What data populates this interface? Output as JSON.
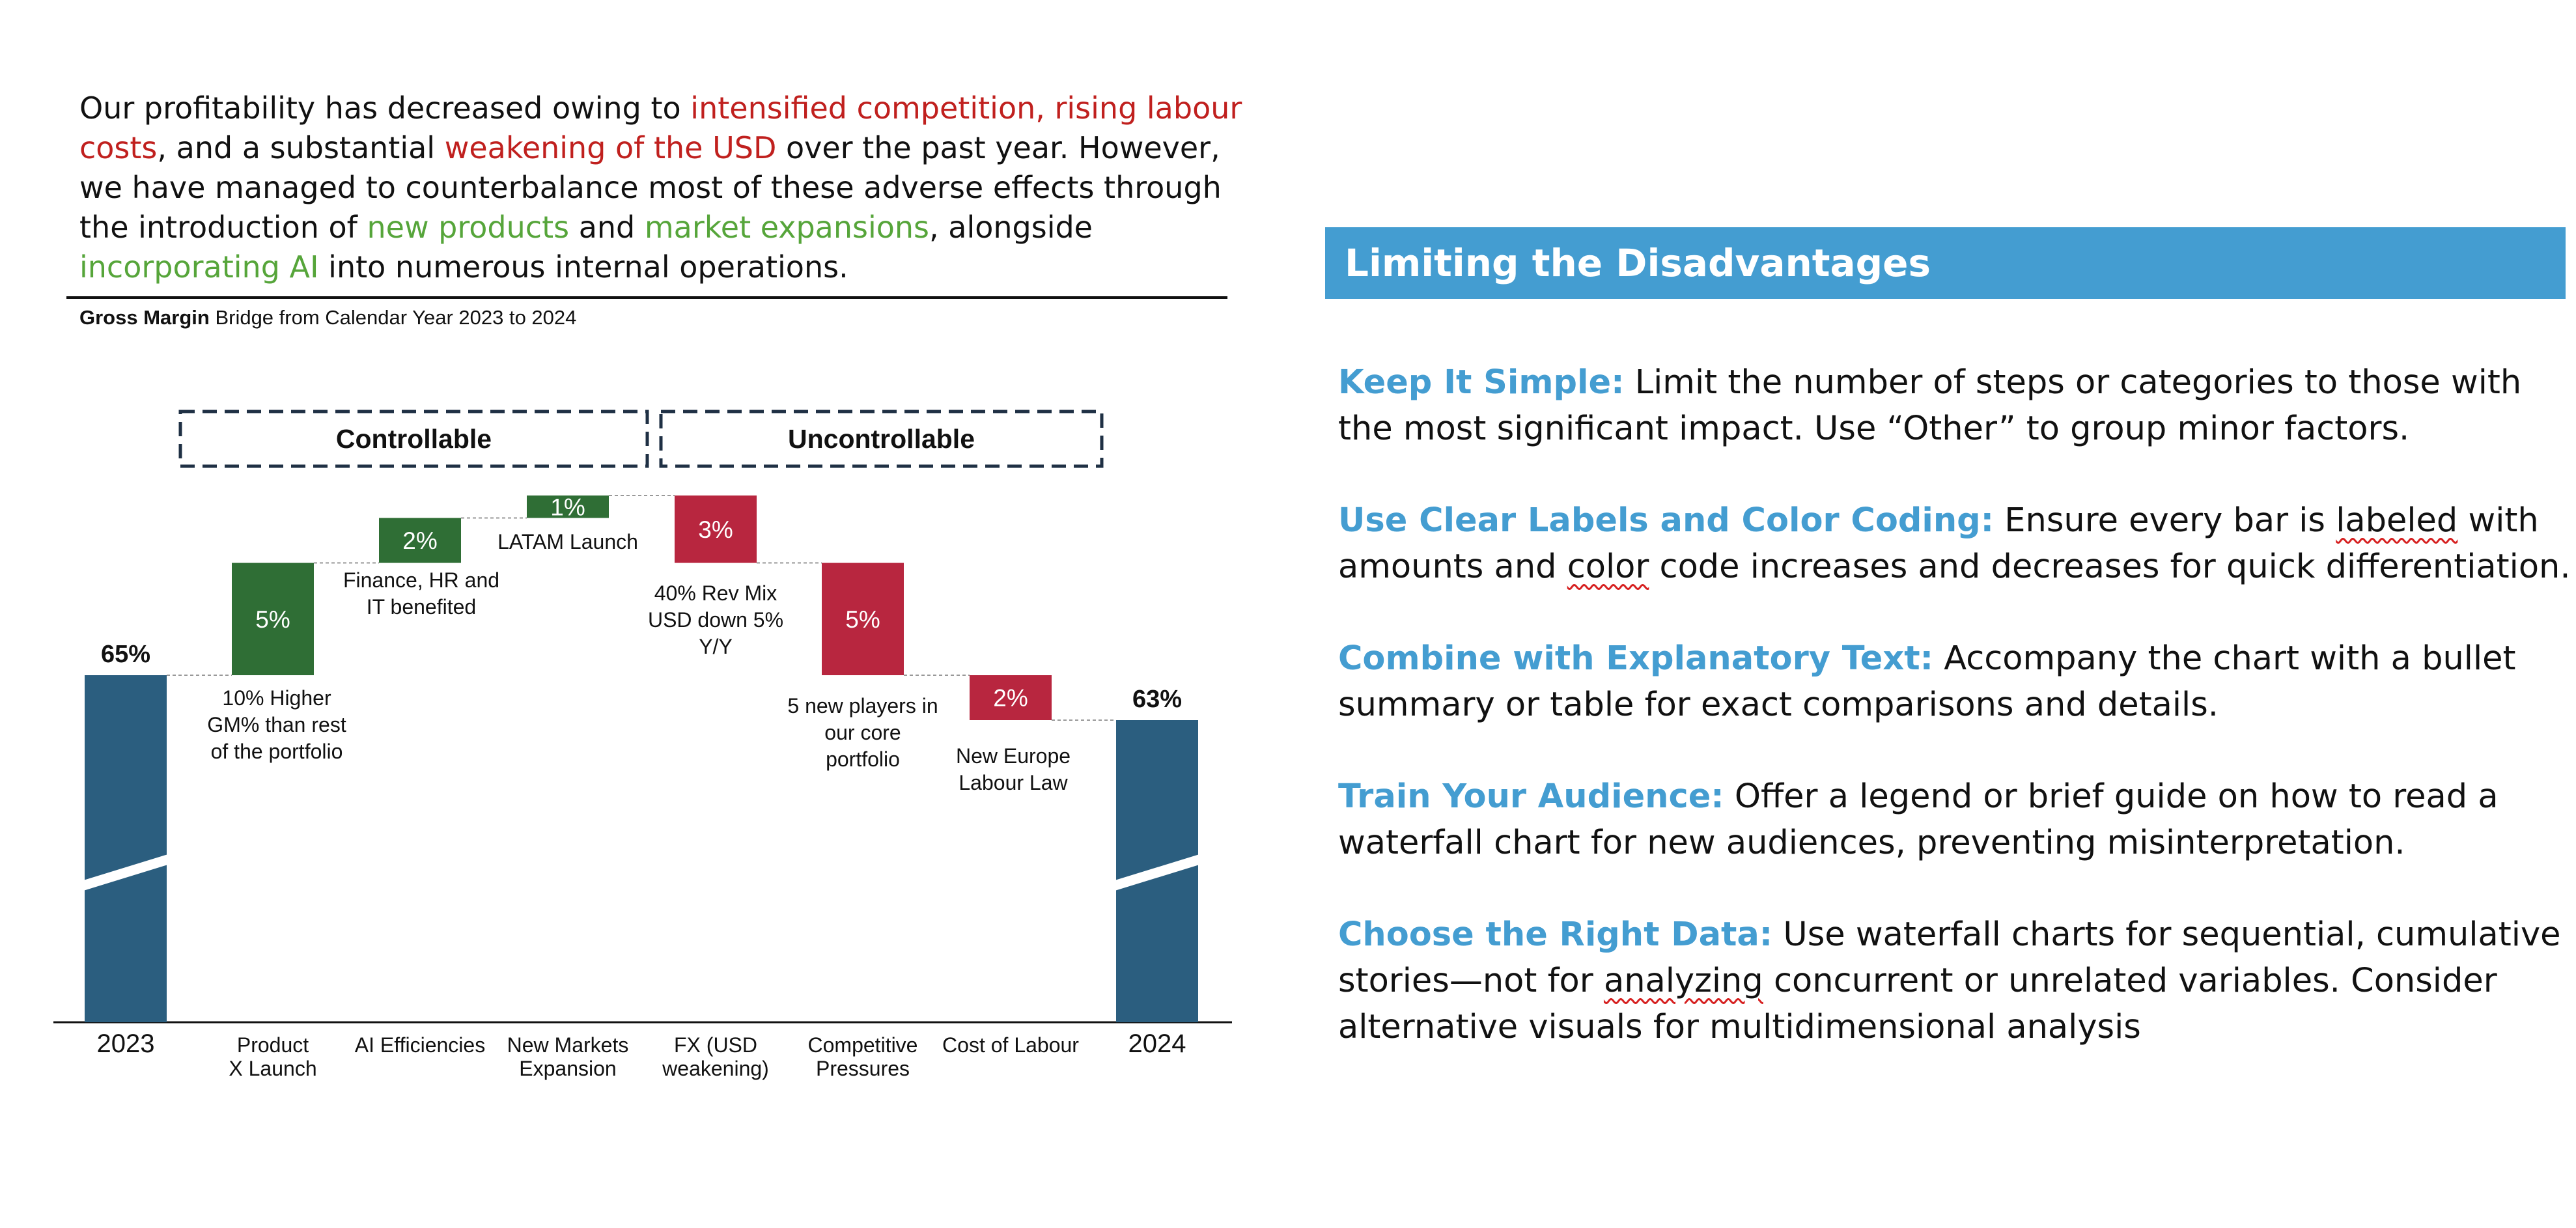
{
  "intro": {
    "p1": "Our profitability has decreased owing to ",
    "neg1": "intensified competition, rising labour costs",
    "p2": ", and a substantial ",
    "neg2": "weakening of the USD",
    "p3": " over the past year. However, we have managed to counterbalance most of these adverse effects through the introduction of ",
    "pos1": "new products",
    "p4": " and ",
    "pos2": "market expansions",
    "p5": ", alongside ",
    "pos3": "incorporating AI",
    "p6": " into numerous internal operations."
  },
  "subtitle": {
    "bold": "Gross Margin",
    "rest": " Bridge from Calendar Year 2023 to 2024"
  },
  "chart_data": {
    "type": "bar",
    "subtype": "waterfall",
    "title": "Gross Margin Bridge from Calendar Year 2023 to 2024",
    "unit": "%",
    "axis_break": true,
    "groups": [
      {
        "label": "Controllable",
        "steps": [
          1,
          2,
          3
        ]
      },
      {
        "label": "Uncontrollable",
        "steps": [
          4,
          5,
          6
        ]
      }
    ],
    "steps": [
      {
        "category": [
          "2023"
        ],
        "kind": "total",
        "value": 65,
        "label": "65%",
        "note": []
      },
      {
        "category": [
          "Product",
          "X Launch"
        ],
        "kind": "increase",
        "value": 5,
        "label": "5%",
        "note": [
          "10% Higher",
          "GM% than rest",
          "of the portfolio"
        ]
      },
      {
        "category": [
          "AI Efficiencies"
        ],
        "kind": "increase",
        "value": 2,
        "label": "2%",
        "note": [
          "Finance, HR and",
          "IT benefited"
        ]
      },
      {
        "category": [
          "New Markets",
          "Expansion"
        ],
        "kind": "increase",
        "value": 1,
        "label": "1%",
        "note": [
          "LATAM Launch"
        ]
      },
      {
        "category": [
          "FX (USD",
          "weakening)"
        ],
        "kind": "decrease",
        "value": -3,
        "label": "3%",
        "note": [
          "40% Rev Mix",
          "USD down 5%",
          "Y/Y"
        ]
      },
      {
        "category": [
          "Competitive",
          "Pressures"
        ],
        "kind": "decrease",
        "value": -5,
        "label": "5%",
        "note": [
          "5 new players in",
          "our core",
          "portfolio"
        ]
      },
      {
        "category": [
          "Cost of Labour"
        ],
        "kind": "decrease",
        "value": -2,
        "label": "2%",
        "note": [
          "New Europe",
          "Labour Law"
        ]
      },
      {
        "category": [
          "2024"
        ],
        "kind": "total",
        "value": 63,
        "label": "63%",
        "note": []
      }
    ],
    "colors": {
      "total": "#2b5e7f",
      "increase": "#2f6e35",
      "decrease": "#b8263f"
    }
  },
  "banner": {
    "title": "Limiting the Disadvantages"
  },
  "tips": [
    {
      "head": "Keep It Simple:",
      "text": " Limit the number of steps or categories to those with the most significant impact. Use “Other” to group minor factors."
    },
    {
      "head": "Use Clear Labels and Color Coding:",
      "a": " Ensure every bar is ",
      "w1": "labeled",
      "b": " with amounts and ",
      "w2": "color",
      "c": " code increases and decreases for quick differentiation."
    },
    {
      "head": "Combine with Explanatory Text:",
      "text": " Accompany the chart with a bullet summary or table for exact comparisons and details."
    },
    {
      "head": "Train Your Audience:",
      "text": " Offer a legend or brief guide on how to read a waterfall chart for new audiences, preventing misinterpretation."
    },
    {
      "head": "Choose the Right Data:",
      "a": " Use waterfall charts for sequential, cumulative stories—not for ",
      "w1": "analyzing",
      "b": " concurrent or unrelated variables. Consider alternative visuals for multidimensional analysis"
    }
  ]
}
